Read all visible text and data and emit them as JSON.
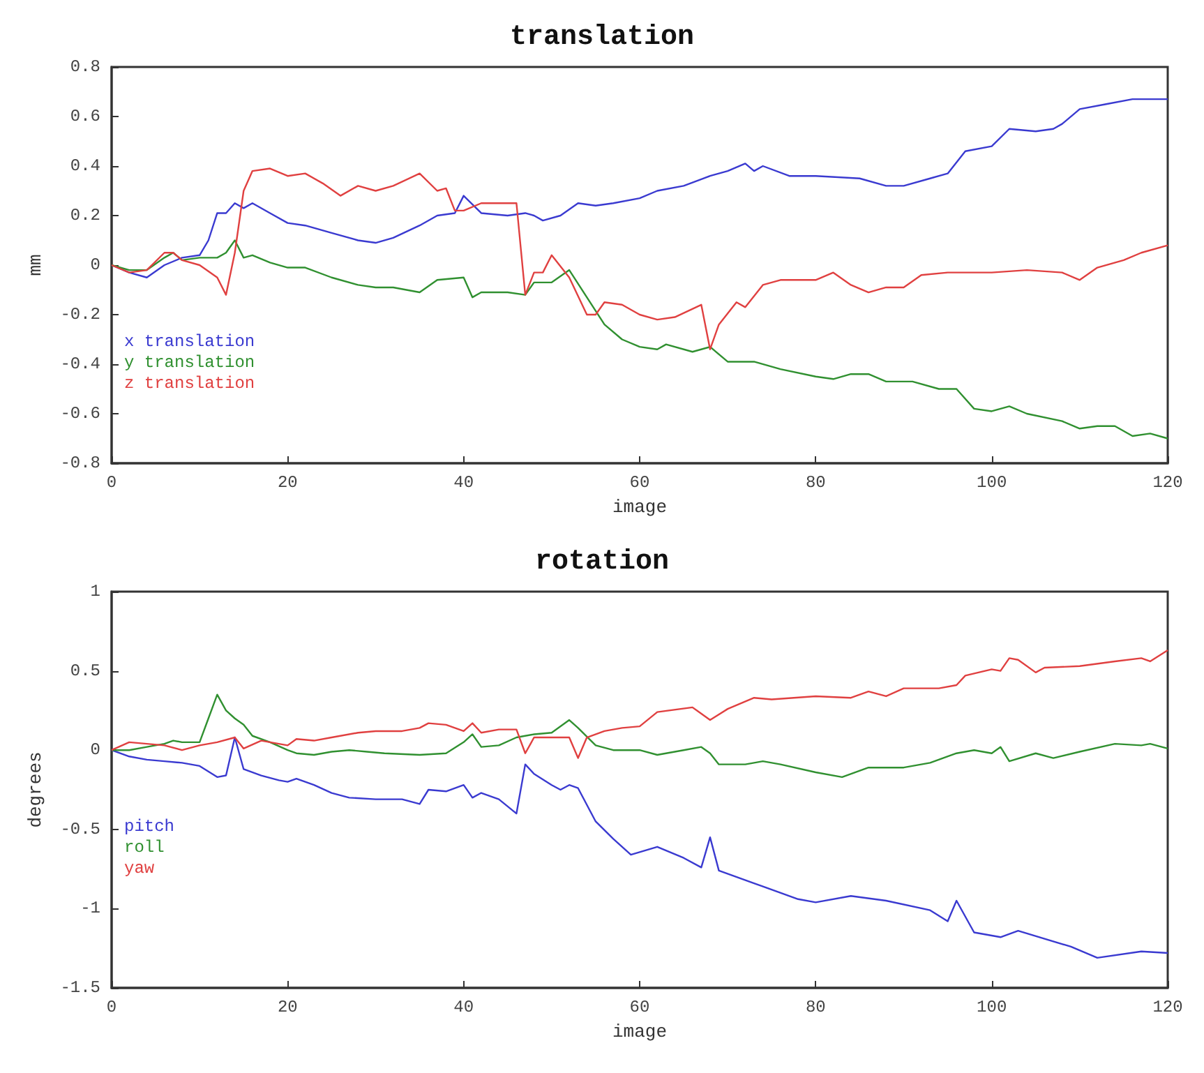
{
  "chart_data": [
    {
      "type": "line",
      "title": "translation",
      "xlabel": "image",
      "ylabel": "mm",
      "xlim": [
        0,
        120
      ],
      "xticks": [
        0,
        20,
        40,
        60,
        80,
        100,
        120
      ],
      "ylim": [
        -0.8,
        0.8
      ],
      "yticks": [
        -0.8,
        -0.6,
        -0.4,
        -0.2,
        0,
        0.2,
        0.4,
        0.6,
        0.8
      ],
      "grid": false,
      "legend": false,
      "series": [
        {
          "name": "x translation",
          "color": "#3a3ad0",
          "x": [
            0,
            2,
            4,
            6,
            8,
            10,
            11,
            12,
            13,
            14,
            15,
            16,
            18,
            20,
            22,
            25,
            28,
            30,
            32,
            35,
            37,
            39,
            40,
            42,
            45,
            47,
            48,
            49,
            51,
            53,
            55,
            57,
            60,
            62,
            65,
            68,
            70,
            72,
            73,
            74,
            77,
            80,
            85,
            88,
            90,
            93,
            95,
            97,
            100,
            102,
            105,
            107,
            108,
            110,
            113,
            116,
            119,
            120
          ],
          "values": [
            0,
            -0.03,
            -0.05,
            0,
            0.03,
            0.04,
            0.1,
            0.21,
            0.21,
            0.25,
            0.23,
            0.25,
            0.21,
            0.17,
            0.16,
            0.13,
            0.1,
            0.09,
            0.11,
            0.16,
            0.2,
            0.21,
            0.28,
            0.21,
            0.2,
            0.21,
            0.2,
            0.18,
            0.2,
            0.25,
            0.24,
            0.25,
            0.27,
            0.3,
            0.32,
            0.36,
            0.38,
            0.41,
            0.38,
            0.4,
            0.36,
            0.36,
            0.35,
            0.32,
            0.32,
            0.35,
            0.37,
            0.46,
            0.48,
            0.55,
            0.54,
            0.55,
            0.57,
            0.63,
            0.65,
            0.67,
            0.67,
            0.67
          ]
        },
        {
          "name": "y translation",
          "color": "#309030",
          "x": [
            0,
            2,
            4,
            6,
            7,
            8,
            10,
            12,
            13,
            14,
            15,
            16,
            18,
            20,
            22,
            25,
            28,
            30,
            32,
            35,
            37,
            40,
            41,
            42,
            45,
            47,
            48,
            50,
            52,
            54,
            56,
            58,
            60,
            62,
            63,
            66,
            68,
            70,
            73,
            76,
            80,
            82,
            84,
            86,
            88,
            91,
            94,
            96,
            98,
            100,
            102,
            104,
            108,
            110,
            112,
            114,
            116,
            118,
            120
          ],
          "values": [
            0,
            -0.02,
            -0.02,
            0.03,
            0.05,
            0.02,
            0.03,
            0.03,
            0.05,
            0.1,
            0.03,
            0.04,
            0.01,
            -0.01,
            -0.01,
            -0.05,
            -0.08,
            -0.09,
            -0.09,
            -0.11,
            -0.06,
            -0.05,
            -0.13,
            -0.11,
            -0.11,
            -0.12,
            -0.07,
            -0.07,
            -0.02,
            -0.13,
            -0.24,
            -0.3,
            -0.33,
            -0.34,
            -0.32,
            -0.35,
            -0.33,
            -0.39,
            -0.39,
            -0.42,
            -0.45,
            -0.46,
            -0.44,
            -0.44,
            -0.47,
            -0.47,
            -0.5,
            -0.5,
            -0.58,
            -0.59,
            -0.57,
            -0.6,
            -0.63,
            -0.66,
            -0.65,
            -0.65,
            -0.69,
            -0.68,
            -0.7
          ]
        },
        {
          "name": "z translation",
          "color": "#e04040",
          "x": [
            0,
            2,
            4,
            6,
            7,
            8,
            10,
            12,
            13,
            14,
            15,
            16,
            18,
            20,
            22,
            24,
            26,
            28,
            30,
            32,
            35,
            37,
            38,
            39,
            40,
            42,
            44,
            46,
            47,
            48,
            49,
            50,
            52,
            54,
            55,
            56,
            58,
            60,
            62,
            64,
            67,
            68,
            69,
            71,
            72,
            74,
            76,
            80,
            82,
            84,
            86,
            88,
            90,
            92,
            95,
            100,
            104,
            108,
            110,
            112,
            115,
            117,
            120
          ],
          "values": [
            0,
            -0.03,
            -0.02,
            0.05,
            0.05,
            0.02,
            0,
            -0.05,
            -0.12,
            0.05,
            0.3,
            0.38,
            0.39,
            0.36,
            0.37,
            0.33,
            0.28,
            0.32,
            0.3,
            0.32,
            0.37,
            0.3,
            0.31,
            0.22,
            0.22,
            0.25,
            0.25,
            0.25,
            -0.12,
            -0.03,
            -0.03,
            0.04,
            -0.05,
            -0.2,
            -0.2,
            -0.15,
            -0.16,
            -0.2,
            -0.22,
            -0.21,
            -0.16,
            -0.34,
            -0.24,
            -0.15,
            -0.17,
            -0.08,
            -0.06,
            -0.06,
            -0.03,
            -0.08,
            -0.11,
            -0.09,
            -0.09,
            -0.04,
            -0.03,
            -0.03,
            -0.02,
            -0.03,
            -0.06,
            -0.01,
            0.02,
            0.05,
            0.08
          ]
        }
      ]
    },
    {
      "type": "line",
      "title": "rotation",
      "xlabel": "image",
      "ylabel": "degrees",
      "xlim": [
        0,
        120
      ],
      "xticks": [
        0,
        20,
        40,
        60,
        80,
        100,
        120
      ],
      "ylim": [
        -1.5,
        1
      ],
      "yticks": [
        -1.5,
        -1,
        -0.5,
        0,
        0.5,
        1
      ],
      "grid": false,
      "legend": false,
      "series": [
        {
          "name": "pitch",
          "color": "#3a3ad0",
          "x": [
            0,
            2,
            4,
            6,
            8,
            10,
            12,
            13,
            14,
            15,
            17,
            19,
            20,
            21,
            23,
            25,
            27,
            30,
            33,
            35,
            36,
            38,
            40,
            41,
            42,
            44,
            46,
            47,
            48,
            50,
            51,
            52,
            53,
            55,
            57,
            59,
            62,
            65,
            67,
            68,
            69,
            73,
            78,
            80,
            84,
            88,
            93,
            95,
            96,
            98,
            101,
            103,
            109,
            112,
            117,
            120
          ],
          "values": [
            0,
            -0.04,
            -0.06,
            -0.07,
            -0.08,
            -0.1,
            -0.17,
            -0.16,
            0.08,
            -0.12,
            -0.16,
            -0.19,
            -0.2,
            -0.18,
            -0.22,
            -0.27,
            -0.3,
            -0.31,
            -0.31,
            -0.34,
            -0.25,
            -0.26,
            -0.22,
            -0.3,
            -0.27,
            -0.31,
            -0.4,
            -0.09,
            -0.15,
            -0.22,
            -0.25,
            -0.22,
            -0.24,
            -0.45,
            -0.56,
            -0.66,
            -0.61,
            -0.68,
            -0.74,
            -0.55,
            -0.76,
            -0.84,
            -0.94,
            -0.96,
            -0.92,
            -0.95,
            -1.01,
            -1.08,
            -0.95,
            -1.15,
            -1.18,
            -1.14,
            -1.24,
            -1.31,
            -1.27,
            -1.28
          ]
        },
        {
          "name": "roll",
          "color": "#309030",
          "x": [
            0,
            2,
            4,
            6,
            7,
            8,
            10,
            11,
            12,
            13,
            14,
            15,
            16,
            18,
            20,
            21,
            23,
            25,
            27,
            29,
            31,
            35,
            38,
            40,
            41,
            42,
            44,
            46,
            48,
            50,
            52,
            53,
            55,
            57,
            60,
            62,
            65,
            67,
            68,
            69,
            72,
            74,
            76,
            80,
            83,
            86,
            90,
            93,
            96,
            98,
            100,
            101,
            102,
            105,
            107,
            110,
            114,
            117,
            118,
            120
          ],
          "values": [
            0,
            0,
            0.02,
            0.04,
            0.06,
            0.05,
            0.05,
            0.2,
            0.35,
            0.25,
            0.2,
            0.16,
            0.09,
            0.05,
            0,
            -0.02,
            -0.03,
            -0.01,
            0,
            -0.01,
            -0.02,
            -0.03,
            -0.02,
            0.05,
            0.1,
            0.02,
            0.03,
            0.08,
            0.1,
            0.11,
            0.19,
            0.14,
            0.03,
            0,
            0,
            -0.03,
            0,
            0.02,
            -0.02,
            -0.09,
            -0.09,
            -0.07,
            -0.09,
            -0.14,
            -0.17,
            -0.11,
            -0.11,
            -0.08,
            -0.02,
            0,
            -0.02,
            0.02,
            -0.07,
            -0.02,
            -0.05,
            -0.01,
            0.04,
            0.03,
            0.04,
            0.01
          ]
        },
        {
          "name": "yaw",
          "color": "#e04040",
          "x": [
            0,
            2,
            4,
            6,
            8,
            10,
            12,
            14,
            15,
            17,
            20,
            21,
            23,
            25,
            28,
            30,
            33,
            35,
            36,
            38,
            40,
            41,
            42,
            44,
            46,
            47,
            48,
            50,
            52,
            53,
            54,
            56,
            58,
            60,
            62,
            66,
            68,
            70,
            73,
            75,
            80,
            84,
            86,
            88,
            90,
            94,
            96,
            97,
            100,
            101,
            102,
            103,
            105,
            106,
            110,
            114,
            117,
            118,
            120
          ],
          "values": [
            0,
            0.05,
            0.04,
            0.03,
            0,
            0.03,
            0.05,
            0.08,
            0.01,
            0.06,
            0.03,
            0.07,
            0.06,
            0.08,
            0.11,
            0.12,
            0.12,
            0.14,
            0.17,
            0.16,
            0.12,
            0.17,
            0.11,
            0.13,
            0.13,
            -0.02,
            0.08,
            0.08,
            0.08,
            -0.05,
            0.08,
            0.12,
            0.14,
            0.15,
            0.24,
            0.27,
            0.19,
            0.26,
            0.33,
            0.32,
            0.34,
            0.33,
            0.37,
            0.34,
            0.39,
            0.39,
            0.41,
            0.47,
            0.51,
            0.5,
            0.58,
            0.57,
            0.49,
            0.52,
            0.53,
            0.56,
            0.58,
            0.56,
            0.63
          ]
        }
      ]
    }
  ]
}
